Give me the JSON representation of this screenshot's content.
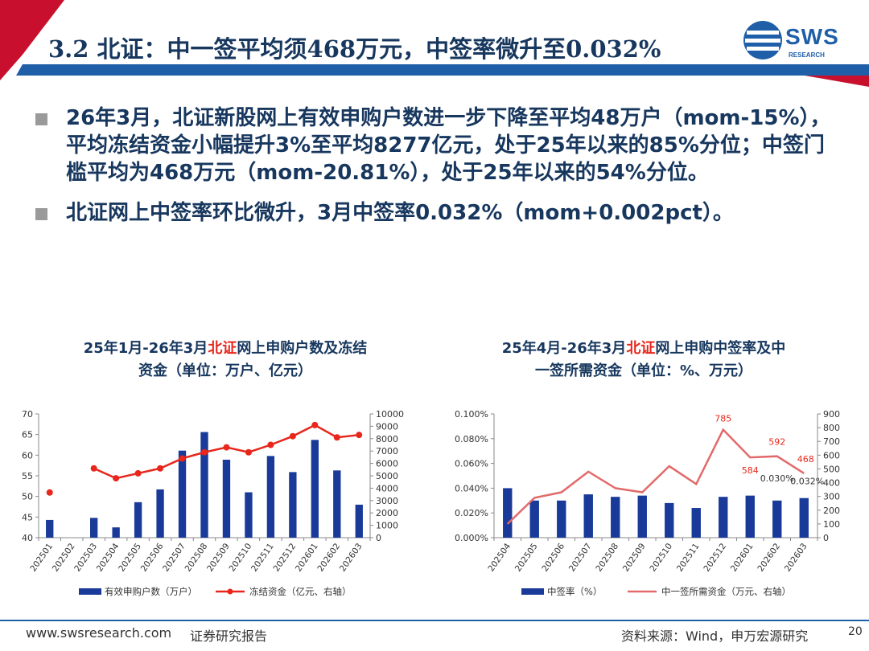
{
  "header": {
    "title": "3.2 北证：中一签平均须468万元，中签率微升至0.032%",
    "logo_text": "SWS",
    "logo_sub": "RESEARCH"
  },
  "bullets": [
    "26年3月，北证新股网上有效申购户数进一步下降至平均48万户（mom-15%），平均冻结资金小幅提升3%至平均8277亿元，处于25年以来的85%分位；中签门槛平均为468万元（mom-20.81%），处于25年以来的54%分位。",
    "北证网上中签率环比微升，3月中签率0.032%（mom+0.002pct）。"
  ],
  "chart1": {
    "title_pre": "25年1月-26年3月",
    "title_hl": "北证",
    "title_post": "网上申购户数及冻结",
    "title_line2": "资金（单位：万户、亿元）"
  },
  "chart2": {
    "title_pre": "25年4月-26年3月",
    "title_hl": "北证",
    "title_post": "网上申购中签率及中",
    "title_line2": "一签所需资金（单位：%、万元）"
  },
  "chart_data": [
    {
      "type": "bar",
      "title": "25年1月-26年3月北证网上申购户数及冻结资金（单位：万户、亿元）",
      "categories": [
        "202501",
        "202502",
        "202503",
        "202504",
        "202505",
        "202506",
        "202507",
        "202508",
        "202509",
        "202510",
        "202511",
        "202512",
        "202601",
        "202602",
        "202603"
      ],
      "y_left": {
        "ylim": [
          40,
          70
        ],
        "ticks": [
          "40",
          "45",
          "50",
          "55",
          "60",
          "65",
          "70"
        ]
      },
      "y_right": {
        "ylim": [
          0,
          10000
        ],
        "ticks": [
          "0",
          "1000",
          "2000",
          "3000",
          "4000",
          "5000",
          "6000",
          "7000",
          "8000",
          "9000",
          "10000"
        ]
      },
      "series": [
        {
          "name": "有效申购户数（万户）",
          "type": "bar",
          "axis": "left",
          "color": "#1A3A9A",
          "values": [
            44.3,
            null,
            44.8,
            42.5,
            48.6,
            51.7,
            61.1,
            65.6,
            58.9,
            51.0,
            59.8,
            55.9,
            63.7,
            56.3,
            48.0
          ]
        },
        {
          "name": "冻结资金（亿元、右轴）",
          "type": "line",
          "axis": "right",
          "color": "#E8261B",
          "values": [
            3650,
            null,
            5600,
            4800,
            5200,
            5600,
            6400,
            6900,
            7300,
            6900,
            7500,
            8200,
            9100,
            8100,
            8300
          ]
        }
      ],
      "legend": "bottom"
    },
    {
      "type": "bar",
      "title": "25年4月-26年3月北证网上申购中签率及中一签所需资金（单位：%、万元）",
      "categories": [
        "202504",
        "202505",
        "202506",
        "202507",
        "202508",
        "202509",
        "202510",
        "202511",
        "202512",
        "202601",
        "202602",
        "202603"
      ],
      "y_left": {
        "ylim": [
          0,
          0.1
        ],
        "ticks": [
          "0.000%",
          "0.020%",
          "0.040%",
          "0.060%",
          "0.080%",
          "0.100%"
        ]
      },
      "y_right": {
        "ylim": [
          0,
          900
        ],
        "ticks": [
          "0",
          "100",
          "200",
          "300",
          "400",
          "500",
          "600",
          "700",
          "800",
          "900"
        ]
      },
      "series": [
        {
          "name": "中签率（%）",
          "type": "bar",
          "axis": "left",
          "color": "#1A3A9A",
          "values": [
            0.04,
            0.03,
            0.03,
            0.035,
            0.033,
            0.034,
            0.028,
            0.024,
            0.033,
            0.034,
            0.03,
            0.032
          ]
        },
        {
          "name": "中一签所需资金（万元、右轴）",
          "type": "line",
          "axis": "right",
          "color": "#E26A6A",
          "values": [
            100,
            290,
            330,
            480,
            360,
            330,
            520,
            390,
            785,
            584,
            592,
            468
          ]
        }
      ],
      "annotations": [
        {
          "text": "785",
          "series": 1,
          "index": 8,
          "color": "#E8261B"
        },
        {
          "text": "584",
          "series": 1,
          "index": 9,
          "color": "#E8261B"
        },
        {
          "text": "592",
          "series": 1,
          "index": 10,
          "color": "#E8261B"
        },
        {
          "text": "468",
          "series": 1,
          "index": 11,
          "color": "#E8261B"
        },
        {
          "text": "0.030%",
          "series": 0,
          "index": 10,
          "color": "#333333"
        },
        {
          "text": "0.032%",
          "series": 0,
          "index": 11,
          "color": "#333333"
        }
      ],
      "legend": "bottom"
    }
  ],
  "footer": {
    "url": "www.swsresearch.com",
    "doc_type": "证券研究报告",
    "source": "资料来源：Wind，申万宏源研究",
    "page": "20"
  }
}
